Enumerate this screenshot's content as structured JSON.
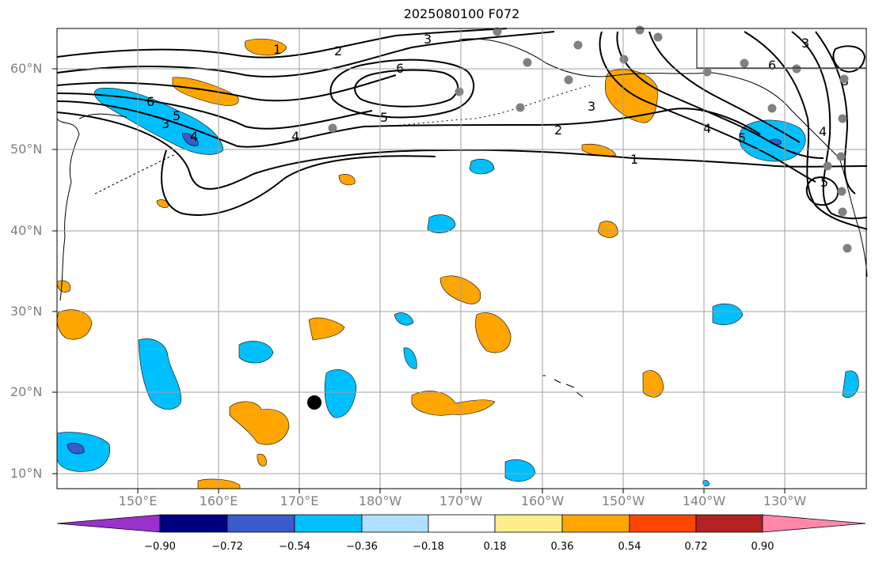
{
  "title": "2025080100 F072",
  "lat_labels": [
    "60°N",
    "50°N",
    "40°N",
    "30°N",
    "20°N",
    "10°N"
  ],
  "lon_labels": [
    "150°E",
    "160°E",
    "170°E",
    "180°W",
    "170°W",
    "160°W",
    "150°W",
    "140°W",
    "130°W"
  ],
  "colorbar": {
    "ticks": [
      "−0.90",
      "−0.72",
      "−0.54",
      "−0.36",
      "−0.18",
      "0.18",
      "0.36",
      "0.54",
      "0.72",
      "0.90"
    ],
    "colors": [
      "#9932cc",
      "#000080",
      "#3a5bcc",
      "#00bfff",
      "#b0e0ff",
      "#ffffff",
      "#ffec8b",
      "#ffa500",
      "#ff4500",
      "#b22222",
      "#ff88aa"
    ]
  },
  "contour_labels": [
    "1",
    "2",
    "3",
    "6",
    "5",
    "4",
    "6",
    "5",
    "3",
    "4",
    "2",
    "1",
    "3",
    "5",
    "4",
    "5",
    "4",
    "6",
    "3",
    "3"
  ],
  "fill_colors": {
    "positive": "#ffa500",
    "negative": "#00bfff",
    "neg_strong": "#3a5bcc"
  },
  "gridline_color": "#a0a0a0"
}
